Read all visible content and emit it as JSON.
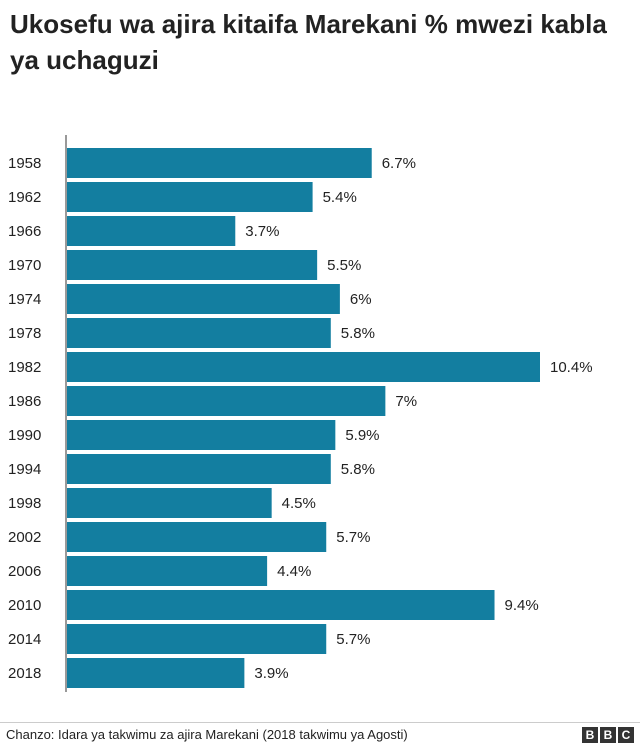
{
  "title": "Ukosefu wa ajira kitaifa Marekani % mwezi kabla ya uchaguzi",
  "source": "Chanzo: Idara ya takwimu za ajira Marekani (2018 takwimu ya Agosti)",
  "logo": [
    "B",
    "B",
    "C"
  ],
  "colors": {
    "bar": "#137ea0",
    "axis": "#333333",
    "text": "#222222"
  },
  "chart_data": {
    "type": "bar",
    "orientation": "horizontal",
    "title": "Ukosefu wa ajira kitaifa Marekani % mwezi kabla ya uchaguzi",
    "categories": [
      "1958",
      "1962",
      "1966",
      "1970",
      "1974",
      "1978",
      "1982",
      "1986",
      "1990",
      "1994",
      "1998",
      "2002",
      "2006",
      "2010",
      "2014",
      "2018"
    ],
    "values": [
      6.7,
      5.4,
      3.7,
      5.5,
      6,
      5.8,
      10.4,
      7,
      5.9,
      5.8,
      4.5,
      5.7,
      4.4,
      9.4,
      5.7,
      3.9
    ],
    "value_labels": [
      "6.7%",
      "5.4%",
      "3.7%",
      "5.5%",
      "6%",
      "5.8%",
      "10.4%",
      "7%",
      "5.9%",
      "5.8%",
      "4.5%",
      "5.7%",
      "4.4%",
      "9.4%",
      "5.7%",
      "3.9%"
    ],
    "xlim": [
      0,
      10.4
    ],
    "grid": false,
    "legend": "none"
  }
}
